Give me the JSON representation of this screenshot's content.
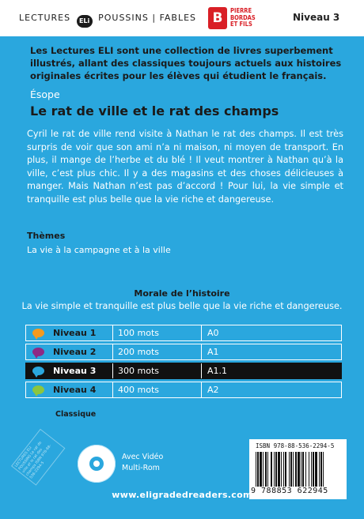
{
  "header": {
    "series_left": "LECTURES",
    "eli_logo": "ELi",
    "series_right": "POUSSINS | FABLES",
    "publisher_mark": "B",
    "publisher_lines": [
      "PIERRE",
      "BORDAS",
      "ET FILS"
    ],
    "level": "Niveau 3"
  },
  "intro": "Les Lectures ELI sont une collection de livres superbement illustrés, allant des classiques toujours actuels aux histoires originales écrites pour les élèves qui étudient le français.",
  "author": "Ésope",
  "title": "Le rat de ville et le rat des champs",
  "summary": "Cyril le rat de ville rend visite à Nathan le rat des champs. Il est très surpris de voir que son ami n’a ni maison, ni moyen de transport. En plus, il mange de l’herbe et du blé ! Il veut montrer à Nathan qu’à la ville, c’est plus chic. Il y a des magasins et des choses délicieuses à manger. Mais Nathan n’est pas d’accord ! Pour lui, la vie simple et tranquille est plus belle que la vie riche et dangereuse.",
  "themes": {
    "heading": "Thèmes",
    "text": "La vie à la campagne et à la ville"
  },
  "moral": {
    "heading": "Morale de l’histoire",
    "text": "La vie simple et tranquille est plus belle que la vie riche et dangereuse."
  },
  "levels": [
    {
      "name": "Niveau 1",
      "words": "100 mots",
      "cefr": "A0",
      "color": "#f39a1f",
      "active": false
    },
    {
      "name": "Niveau 2",
      "words": "200 mots",
      "cefr": "A1",
      "color": "#8e2a84",
      "active": false
    },
    {
      "name": "Niveau 3",
      "words": "300 mots",
      "cefr": "A1.1",
      "color": "#2aa7de",
      "active": true
    },
    {
      "name": "Niveau 4",
      "words": "400 mots",
      "cefr": "A2",
      "color": "#8cc63f",
      "active": false
    }
  ],
  "classique": "Classique",
  "media": {
    "line1": "Avec Vidéo",
    "line2": "Multi-Rom"
  },
  "website": "www.eligradedreaders.com",
  "isbn": {
    "label": "ISBN 978-88-536-2294-5",
    "digits": "9 788853 622945"
  },
  "spine_note": "LECTURES ELI POUSSINS Le rat de ville et le rat des champs ISBN 978-88-536-2294-5",
  "colors": {
    "background": "#2aa7de",
    "active_row": "#111111",
    "publisher_red": "#d91f26"
  }
}
